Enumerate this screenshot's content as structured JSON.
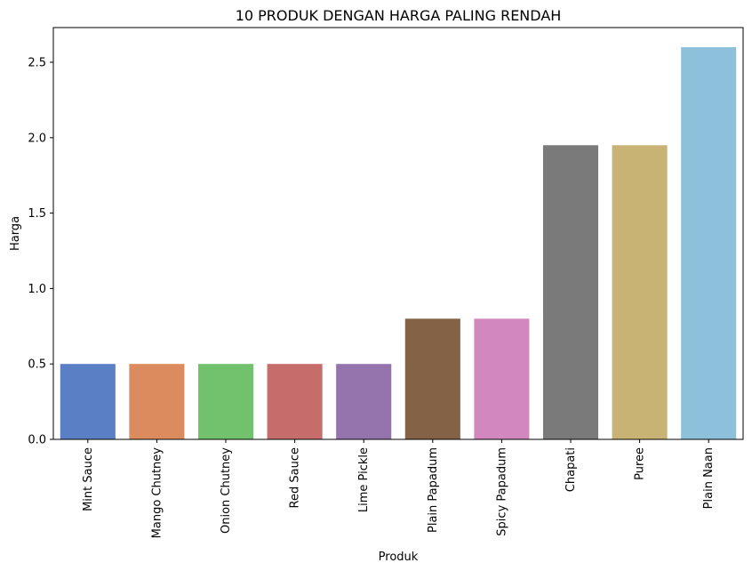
{
  "chart_data": {
    "type": "bar",
    "title": "10 PRODUK DENGAN HARGA PALING RENDAH",
    "xlabel": "Produk",
    "ylabel": "Harga",
    "categories": [
      "Mint Sauce",
      "Mango Chutney",
      "Onion Chutney",
      "Red Sauce",
      "Lime Pickle",
      "Plain Papadum",
      "Spicy Papadum",
      "Chapati",
      "Puree",
      "Plain Naan"
    ],
    "values": [
      0.5,
      0.5,
      0.5,
      0.5,
      0.5,
      0.8,
      0.8,
      1.95,
      1.95,
      2.6
    ],
    "colors": [
      "#5a7fc4",
      "#db8b5d",
      "#72c26d",
      "#c66c6b",
      "#9574ae",
      "#836246",
      "#d287be",
      "#7a7a7a",
      "#c8b374",
      "#8dc0da"
    ],
    "ylim": [
      0,
      2.73
    ],
    "yticks": [
      0.0,
      0.5,
      1.0,
      1.5,
      2.0,
      2.5
    ],
    "ytick_labels": [
      "0.0",
      "0.5",
      "1.0",
      "1.5",
      "2.0",
      "2.5"
    ],
    "grid": false,
    "legend": null
  }
}
